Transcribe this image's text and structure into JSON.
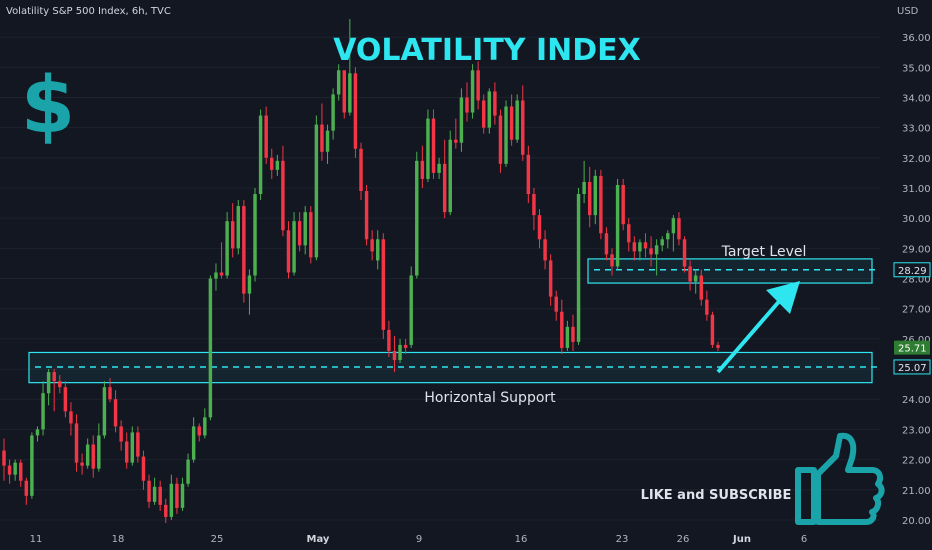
{
  "header": {
    "symbol": "Volatility S&P 500 Index, 6h, TVC"
  },
  "currency": "USD",
  "overlay": {
    "title": "VOLATILITY INDEX",
    "dollar_sign": "$",
    "target_label": "Target Level",
    "support_label": "Horizontal Support",
    "subscribe_label": "LIKE and SUBSCRIBE",
    "accent_color": "#2ee6f0",
    "icons": [
      "dollar-sign-icon",
      "thumbs-up-icon",
      "arrow-up-right-icon"
    ]
  },
  "chart_data": {
    "type": "candlestick",
    "title": "VOLATILITY INDEX",
    "yaxis_side": "right",
    "ylim": [
      19.8,
      36.5
    ],
    "yticks": [
      20.0,
      21.0,
      22.0,
      23.0,
      24.0,
      25.0,
      26.0,
      27.0,
      28.0,
      29.0,
      30.0,
      31.0,
      32.0,
      33.0,
      34.0,
      35.0,
      36.0
    ],
    "xtick_labels": [
      "11",
      "18",
      "25",
      "May",
      "9",
      "16",
      "23",
      "26",
      "Jun",
      "6"
    ],
    "price_labels": [
      {
        "value": 28.29,
        "text": "28.29",
        "style": "outline"
      },
      {
        "value": 25.71,
        "text": "25.71",
        "style": "green"
      },
      {
        "value": 25.07,
        "text": "25.07",
        "style": "outline"
      }
    ],
    "zones": [
      {
        "name": "Target Level",
        "low": 27.85,
        "high": 28.65,
        "line": 28.29
      },
      {
        "name": "Horizontal Support",
        "low": 24.55,
        "high": 25.55,
        "line": 25.07
      }
    ],
    "colors": {
      "up": "#4caf50",
      "down": "#f23645",
      "zone": "#2ee6f0",
      "grid": "#1e222d"
    },
    "candles": [
      [
        22.3,
        22.7,
        21.3,
        21.8
      ],
      [
        21.8,
        22.0,
        21.2,
        21.5
      ],
      [
        21.5,
        22.0,
        21.3,
        21.9
      ],
      [
        21.9,
        22.0,
        21.1,
        21.3
      ],
      [
        21.3,
        21.4,
        20.5,
        20.8
      ],
      [
        20.8,
        22.9,
        20.7,
        22.8
      ],
      [
        22.8,
        23.1,
        22.6,
        23.0
      ],
      [
        23.0,
        24.6,
        22.8,
        24.2
      ],
      [
        24.2,
        25.0,
        23.8,
        24.9
      ],
      [
        24.9,
        25.0,
        23.6,
        24.6
      ],
      [
        24.6,
        24.8,
        24.2,
        24.4
      ],
      [
        24.4,
        24.6,
        23.4,
        23.6
      ],
      [
        23.6,
        23.9,
        22.8,
        23.2
      ],
      [
        23.2,
        23.5,
        21.6,
        21.9
      ],
      [
        21.9,
        22.2,
        21.5,
        21.8
      ],
      [
        21.8,
        22.7,
        21.7,
        22.5
      ],
      [
        22.5,
        22.8,
        21.4,
        21.7
      ],
      [
        21.7,
        23.2,
        21.6,
        22.8
      ],
      [
        22.8,
        24.6,
        22.7,
        24.4
      ],
      [
        24.4,
        24.7,
        23.9,
        24.0
      ],
      [
        24.0,
        24.3,
        22.9,
        23.1
      ],
      [
        23.1,
        23.3,
        22.3,
        22.6
      ],
      [
        22.6,
        22.9,
        21.7,
        21.9
      ],
      [
        21.9,
        23.1,
        21.8,
        22.9
      ],
      [
        22.9,
        23.1,
        21.9,
        22.1
      ],
      [
        22.1,
        22.3,
        21.0,
        21.3
      ],
      [
        21.3,
        21.5,
        20.4,
        20.6
      ],
      [
        20.6,
        21.4,
        20.5,
        21.1
      ],
      [
        21.1,
        21.3,
        20.3,
        20.5
      ],
      [
        20.5,
        20.7,
        19.9,
        20.1
      ],
      [
        20.1,
        21.5,
        20.0,
        21.2
      ],
      [
        21.2,
        21.4,
        20.2,
        20.4
      ],
      [
        20.4,
        21.4,
        20.3,
        21.2
      ],
      [
        21.2,
        22.2,
        21.1,
        22.0
      ],
      [
        22.0,
        23.4,
        21.9,
        23.1
      ],
      [
        23.1,
        23.2,
        22.6,
        22.8
      ],
      [
        22.8,
        23.7,
        22.7,
        23.4
      ],
      [
        23.4,
        28.1,
        23.3,
        28.0
      ],
      [
        28.0,
        28.5,
        27.6,
        28.2
      ],
      [
        28.2,
        29.2,
        28.0,
        28.1
      ],
      [
        28.1,
        30.2,
        28.0,
        29.9
      ],
      [
        29.9,
        30.5,
        28.7,
        29.0
      ],
      [
        29.0,
        30.6,
        28.8,
        30.4
      ],
      [
        30.4,
        30.6,
        27.2,
        27.5
      ],
      [
        27.5,
        28.3,
        26.8,
        28.1
      ],
      [
        28.1,
        31.0,
        27.9,
        30.8
      ],
      [
        30.8,
        33.6,
        30.6,
        33.4
      ],
      [
        33.4,
        33.7,
        31.8,
        32.0
      ],
      [
        32.0,
        32.3,
        31.3,
        31.6
      ],
      [
        31.6,
        32.1,
        31.4,
        31.9
      ],
      [
        31.9,
        32.4,
        29.4,
        29.6
      ],
      [
        29.6,
        29.9,
        28.0,
        28.2
      ],
      [
        28.2,
        30.2,
        28.1,
        29.9
      ],
      [
        29.9,
        30.2,
        28.9,
        29.1
      ],
      [
        29.1,
        30.4,
        28.8,
        30.2
      ],
      [
        30.2,
        30.4,
        28.5,
        28.7
      ],
      [
        28.7,
        33.4,
        28.6,
        33.1
      ],
      [
        33.1,
        33.8,
        31.9,
        32.2
      ],
      [
        32.2,
        33.1,
        31.8,
        32.9
      ],
      [
        32.9,
        34.3,
        32.6,
        34.1
      ],
      [
        34.1,
        35.1,
        33.9,
        34.9
      ],
      [
        34.9,
        34.9,
        33.3,
        33.5
      ],
      [
        33.5,
        36.6,
        33.4,
        34.8
      ],
      [
        34.8,
        35.0,
        32.0,
        32.3
      ],
      [
        32.3,
        32.5,
        30.6,
        30.9
      ],
      [
        30.9,
        31.1,
        29.1,
        29.3
      ],
      [
        29.3,
        29.6,
        28.6,
        28.9
      ],
      [
        28.6,
        29.6,
        28.3,
        29.3
      ],
      [
        29.3,
        29.5,
        26.0,
        26.3
      ],
      [
        26.3,
        26.6,
        25.4,
        25.6
      ],
      [
        25.6,
        26.1,
        24.9,
        25.3
      ],
      [
        25.3,
        26.0,
        25.2,
        25.8
      ],
      [
        25.8,
        26.0,
        25.5,
        25.7
      ],
      [
        25.8,
        28.4,
        25.7,
        28.1
      ],
      [
        28.1,
        32.2,
        28.0,
        31.9
      ],
      [
        31.9,
        32.4,
        31.0,
        31.3
      ],
      [
        31.3,
        33.6,
        31.2,
        33.3
      ],
      [
        33.3,
        33.6,
        31.3,
        31.5
      ],
      [
        31.5,
        32.0,
        31.3,
        31.8
      ],
      [
        31.8,
        32.6,
        30.0,
        30.2
      ],
      [
        30.2,
        32.9,
        30.1,
        32.6
      ],
      [
        32.6,
        33.3,
        32.3,
        32.5
      ],
      [
        32.5,
        34.3,
        32.2,
        34.0
      ],
      [
        34.0,
        34.5,
        33.2,
        33.5
      ],
      [
        33.5,
        35.1,
        33.3,
        34.9
      ],
      [
        34.9,
        35.2,
        33.6,
        33.9
      ],
      [
        33.9,
        34.1,
        32.8,
        33.0
      ],
      [
        33.0,
        34.3,
        32.8,
        34.2
      ],
      [
        34.2,
        34.5,
        33.1,
        33.4
      ],
      [
        33.4,
        33.6,
        31.5,
        31.8
      ],
      [
        31.8,
        33.9,
        31.7,
        33.7
      ],
      [
        33.7,
        34.1,
        32.4,
        32.6
      ],
      [
        32.6,
        34.1,
        32.5,
        33.9
      ],
      [
        33.9,
        34.4,
        31.9,
        32.1
      ],
      [
        32.1,
        32.4,
        30.5,
        30.8
      ],
      [
        30.8,
        31.0,
        29.6,
        30.1
      ],
      [
        30.1,
        30.3,
        29.0,
        29.3
      ],
      [
        29.3,
        29.6,
        28.3,
        28.6
      ],
      [
        28.6,
        28.8,
        27.1,
        27.4
      ],
      [
        27.4,
        27.6,
        26.6,
        26.9
      ],
      [
        26.9,
        27.3,
        25.5,
        25.7
      ],
      [
        25.7,
        26.6,
        25.6,
        26.4
      ],
      [
        26.4,
        26.8,
        25.6,
        25.9
      ],
      [
        25.9,
        31.0,
        25.8,
        30.8
      ],
      [
        30.8,
        31.9,
        30.5,
        31.2
      ],
      [
        31.2,
        31.7,
        29.7,
        30.1
      ],
      [
        30.1,
        31.6,
        29.8,
        31.4
      ],
      [
        31.4,
        31.6,
        29.3,
        29.5
      ],
      [
        29.5,
        29.7,
        28.6,
        28.8
      ],
      [
        28.8,
        29.0,
        28.1,
        28.4
      ],
      [
        28.4,
        31.3,
        28.3,
        31.1
      ],
      [
        31.1,
        31.3,
        29.6,
        29.8
      ],
      [
        29.8,
        30.0,
        28.9,
        29.2
      ],
      [
        29.2,
        29.4,
        28.6,
        28.9
      ],
      [
        28.9,
        29.3,
        28.6,
        29.2
      ],
      [
        29.2,
        29.5,
        28.7,
        29.0
      ],
      [
        29.0,
        29.4,
        28.4,
        28.8
      ],
      [
        28.8,
        29.3,
        28.1,
        29.1
      ],
      [
        29.1,
        29.4,
        28.9,
        29.3
      ],
      [
        29.3,
        29.6,
        29.0,
        29.5
      ],
      [
        29.5,
        30.1,
        28.9,
        30.0
      ],
      [
        30.0,
        30.2,
        29.1,
        29.3
      ],
      [
        29.3,
        29.4,
        28.2,
        28.4
      ],
      [
        28.4,
        28.6,
        27.6,
        27.9
      ],
      [
        27.9,
        28.3,
        27.5,
        28.1
      ],
      [
        28.1,
        28.3,
        27.1,
        27.3
      ],
      [
        27.3,
        27.6,
        26.6,
        26.8
      ],
      [
        26.8,
        26.9,
        25.7,
        25.8
      ],
      [
        25.8,
        25.9,
        25.6,
        25.7
      ]
    ]
  }
}
